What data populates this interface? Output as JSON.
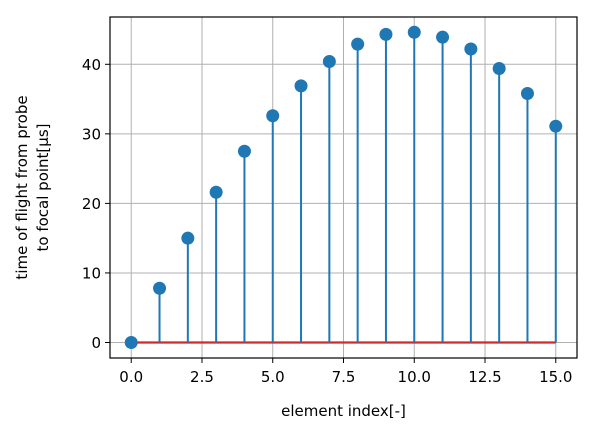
{
  "chart_data": {
    "type": "stem",
    "title": "",
    "xlabel": "element index[-]",
    "ylabel_lines": [
      "time of flight from probe",
      "to focal point[μs]"
    ],
    "xlim": [
      -0.75,
      15.75
    ],
    "ylim": [
      -2.23,
      46.8
    ],
    "xticks": [
      0.0,
      2.5,
      5.0,
      7.5,
      10.0,
      12.5,
      15.0
    ],
    "xtick_labels": [
      "0.0",
      "2.5",
      "5.0",
      "7.5",
      "10.0",
      "12.5",
      "15.0"
    ],
    "yticks": [
      0,
      10,
      20,
      30,
      40
    ],
    "ytick_labels": [
      "0",
      "10",
      "20",
      "30",
      "40"
    ],
    "grid": true,
    "baseline": 0,
    "x": [
      0,
      1,
      2,
      3,
      4,
      5,
      6,
      7,
      8,
      9,
      10,
      11,
      12,
      13,
      14,
      15
    ],
    "values": [
      0.0,
      7.8,
      15.0,
      21.6,
      27.5,
      32.6,
      36.9,
      40.4,
      42.9,
      44.3,
      44.6,
      43.9,
      42.2,
      39.4,
      35.8,
      31.1
    ],
    "colors": {
      "stem": "#1f77b4",
      "marker": "#1f77b4",
      "baseline": "#d62728",
      "grid": "#b0b0b0"
    }
  }
}
